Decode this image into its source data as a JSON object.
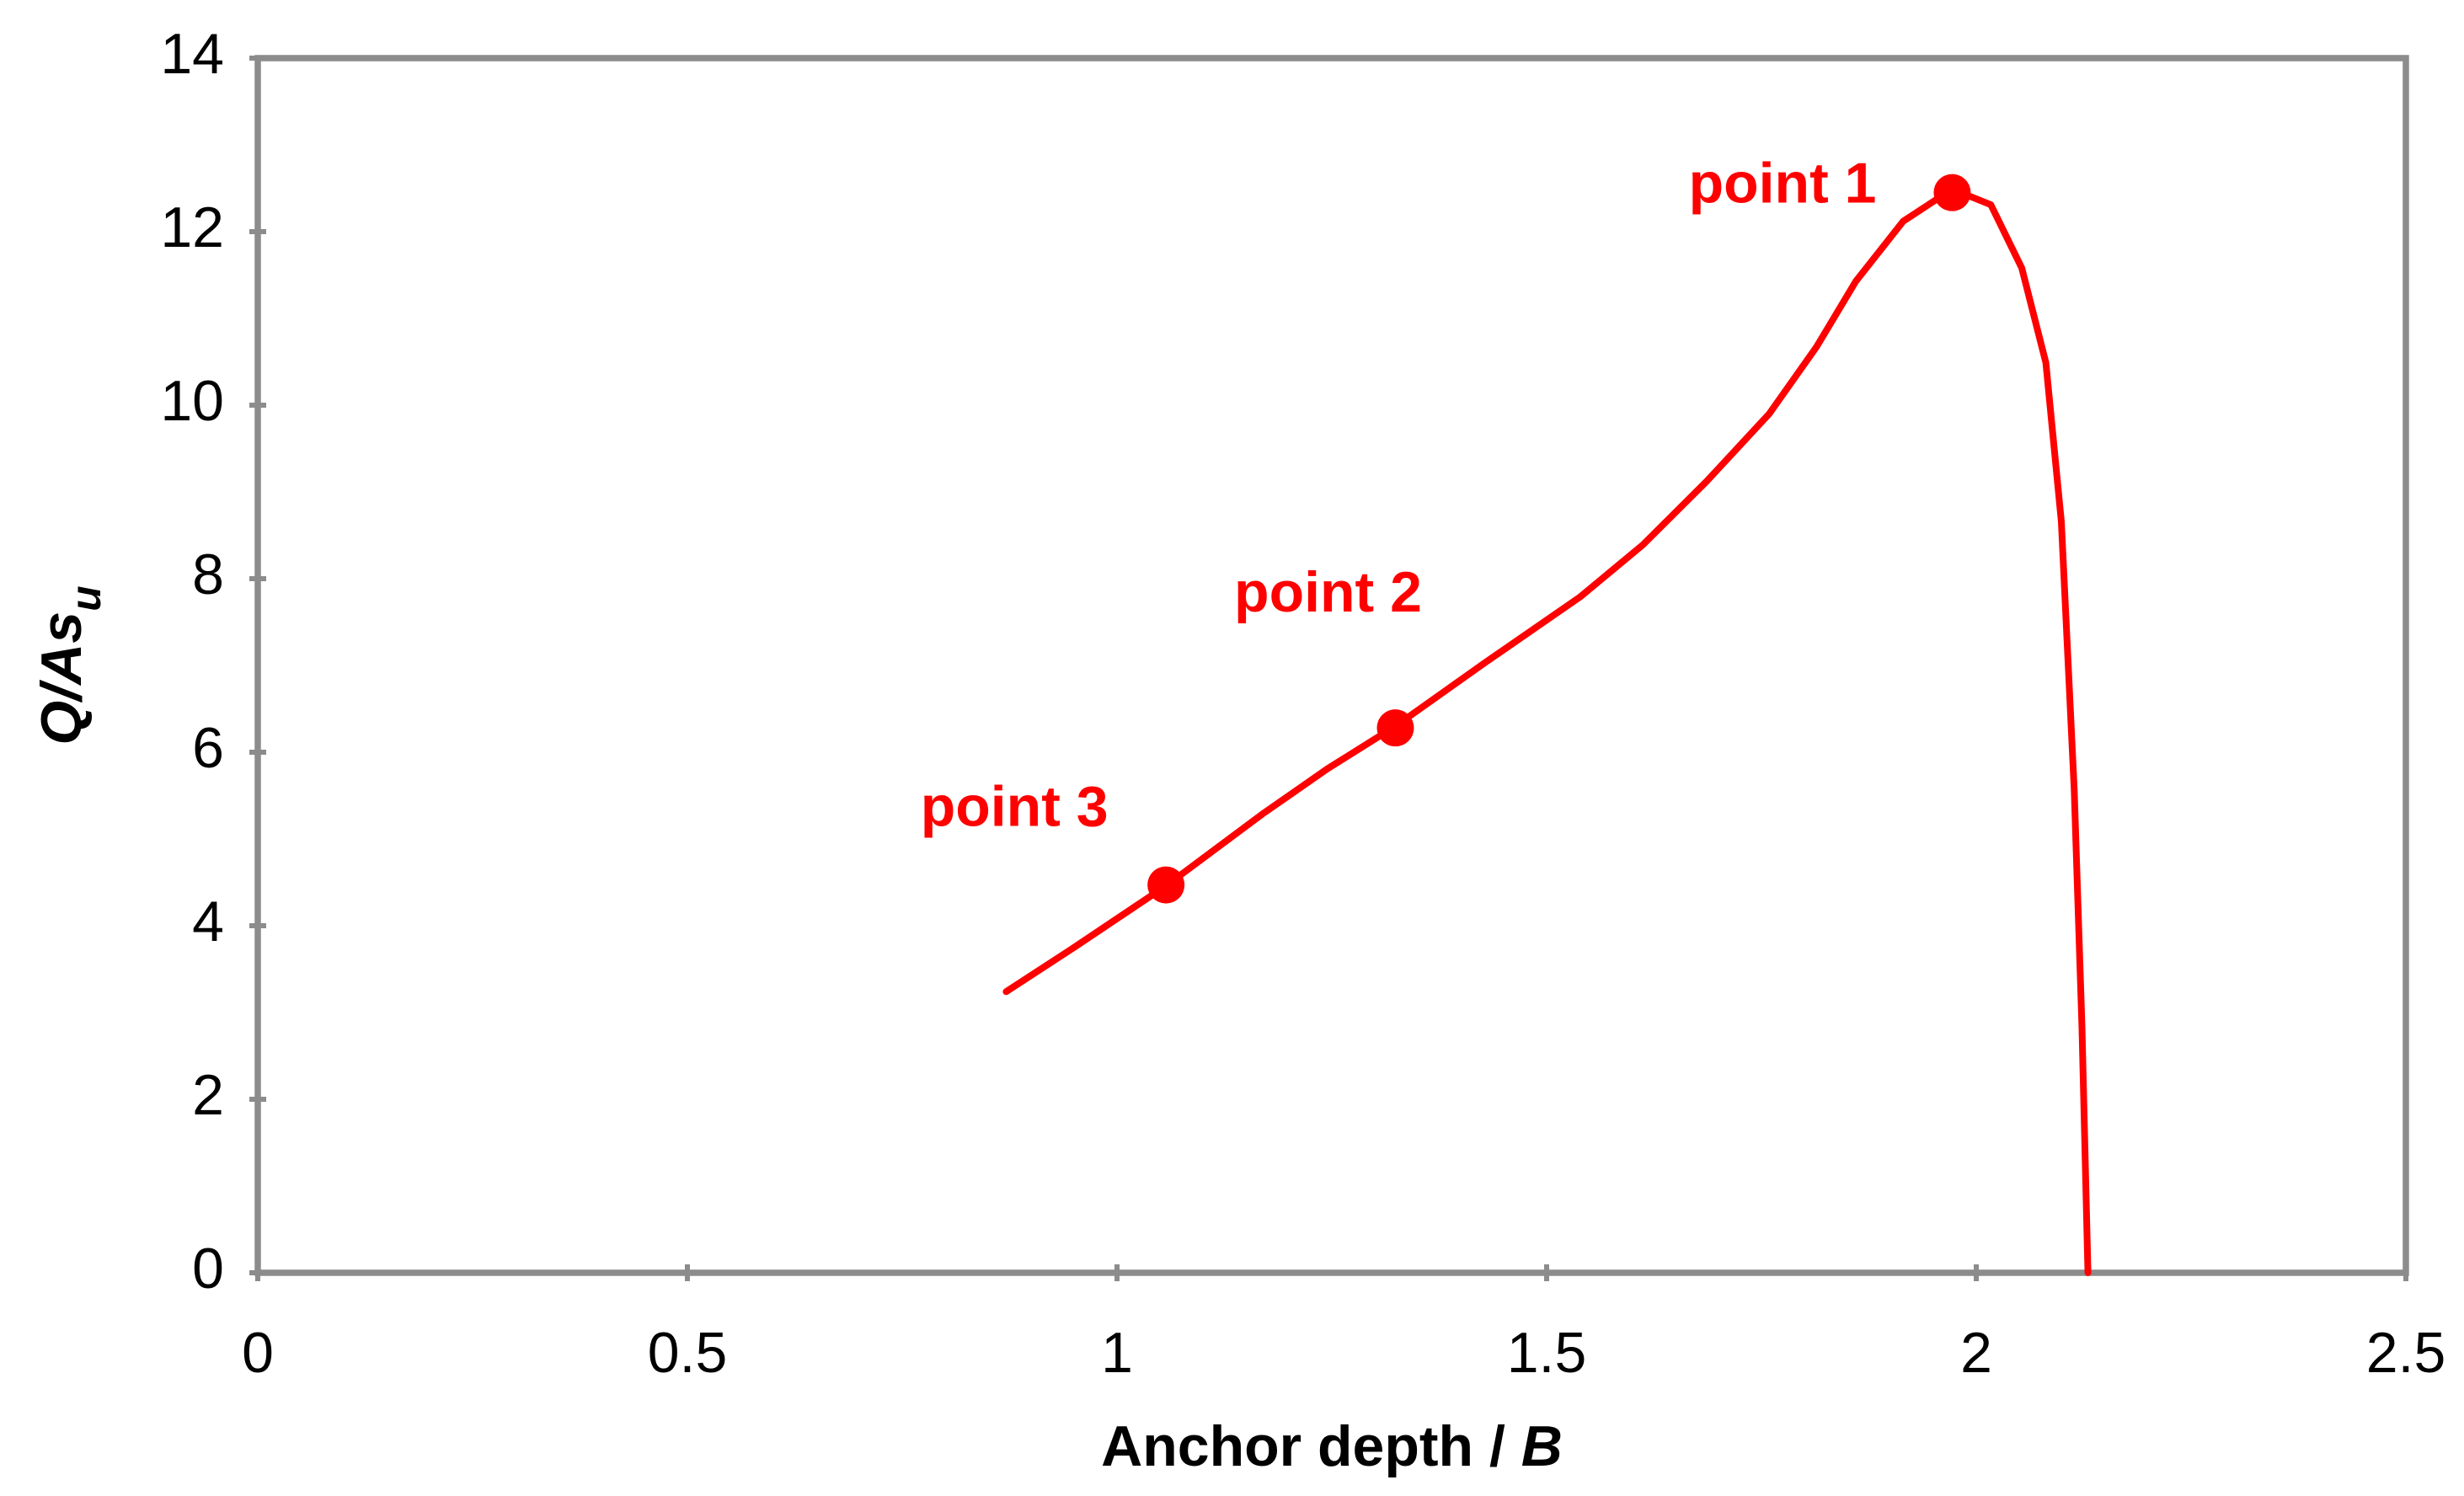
{
  "chart_data": {
    "type": "line",
    "xlabel": [
      "Anchor depth / ",
      "B"
    ],
    "ylabel": [
      "Q/As",
      "u"
    ],
    "xlim": [
      0,
      2.5
    ],
    "xticks": [
      0,
      0.5,
      1,
      1.5,
      2,
      2.5
    ],
    "ylim": [
      0,
      14
    ],
    "yticks": [
      0,
      2,
      4,
      6,
      8,
      10,
      12,
      14
    ],
    "grid": false,
    "series": [
      {
        "color": "#ff0000",
        "x": [
          0.871,
          0.95,
          1.057,
          1.171,
          1.245,
          1.324,
          1.428,
          1.539,
          1.612,
          1.686,
          1.759,
          1.814,
          1.86,
          1.915,
          1.972,
          2.017,
          2.053,
          2.081,
          2.099,
          2.114,
          2.123,
          2.13
        ],
        "values": [
          3.24,
          3.75,
          4.46,
          5.3,
          5.81,
          6.3,
          7.03,
          7.79,
          8.39,
          9.12,
          9.9,
          10.67,
          11.43,
          12.12,
          12.49,
          12.31,
          11.58,
          10.49,
          8.66,
          5.57,
          2.84,
          0
        ]
      }
    ],
    "markers": {
      "color": "#ff0000",
      "x": [
        1.972,
        1.324,
        1.057
      ],
      "values": [
        12.45,
        6.28,
        4.47
      ],
      "labels": [
        "point 1",
        "point 2",
        "point 3"
      ]
    }
  }
}
